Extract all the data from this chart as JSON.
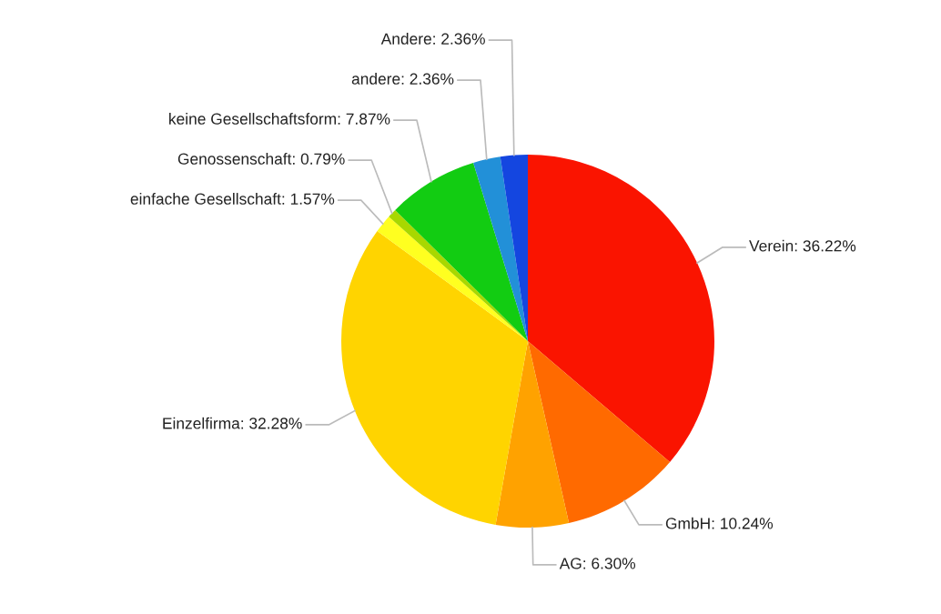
{
  "chart_data": {
    "type": "pie",
    "categories": [
      "Verein",
      "GmbH",
      "AG",
      "Einzelfirma",
      "einfache Gesellschaft",
      "Genossenschaft",
      "keine Gesellschaftsform",
      "andere",
      "Andere"
    ],
    "values": [
      36.22,
      10.24,
      6.3,
      32.28,
      1.57,
      0.79,
      7.87,
      2.36,
      2.36
    ],
    "value_labels": [
      ": 36.22%",
      ": 10.24%",
      ": 6.30%",
      ": 32.28%",
      ": 1.57%",
      ": 0.79%",
      ": 7.87%",
      ": 2.36%",
      ": 2.36%"
    ],
    "colors": [
      "#fa1400",
      "#ff6a00",
      "#ffa200",
      "#ffd400",
      "#ffff20",
      "#a8d800",
      "#12cc12",
      "#2290d8",
      "#1446e0"
    ]
  }
}
